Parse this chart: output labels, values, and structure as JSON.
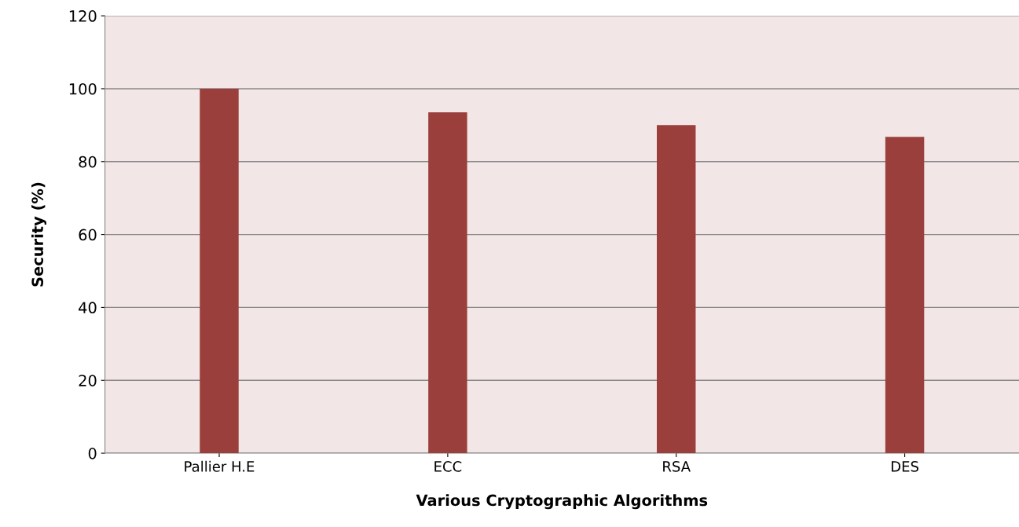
{
  "chart_data": {
    "type": "bar",
    "xlabel": "Various Cryptographic Algorithms",
    "ylabel": "Security (%)",
    "categories": [
      "Pallier H.E",
      "ECC",
      "RSA",
      "DES"
    ],
    "values": [
      100,
      93.5,
      90,
      86.8
    ],
    "color": "#9b3f3c",
    "ylim": [
      0,
      120
    ],
    "yticks": [
      0,
      20,
      40,
      60,
      80,
      100,
      120
    ],
    "grid": "y"
  }
}
